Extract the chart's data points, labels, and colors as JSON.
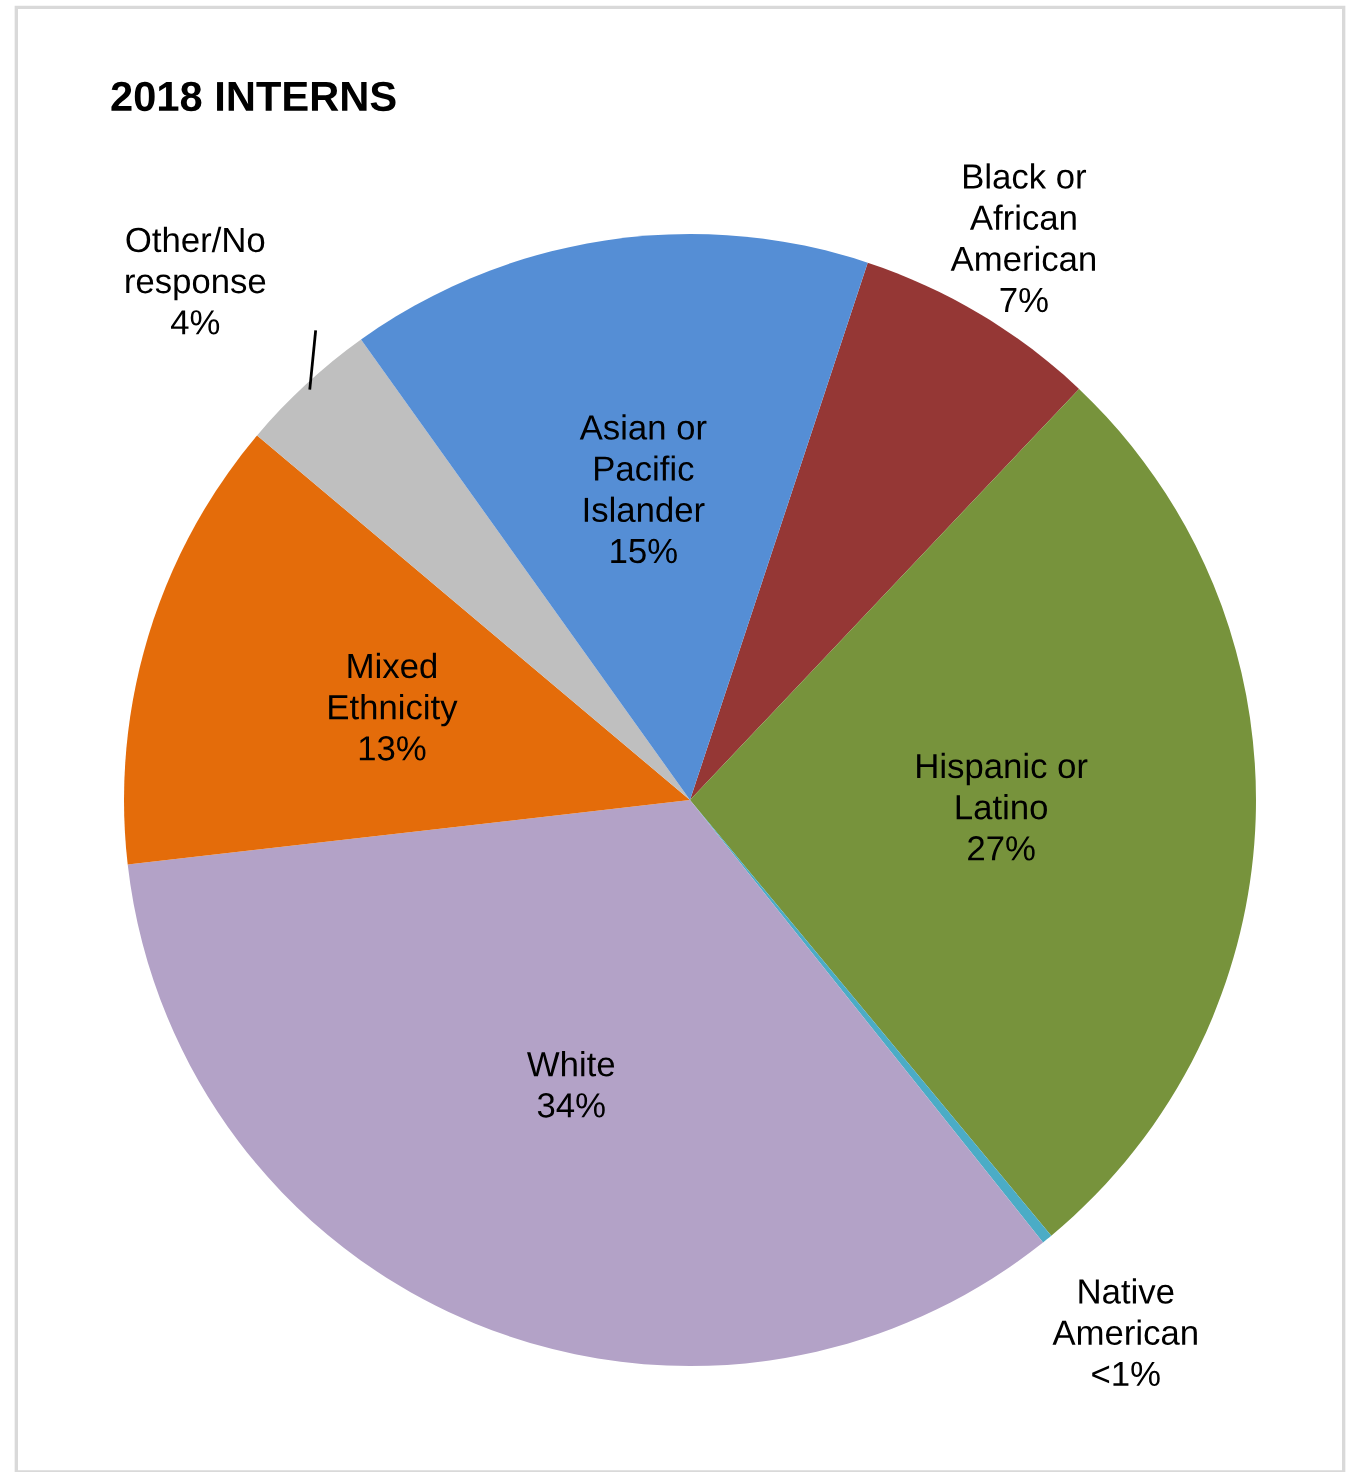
{
  "chart_data": {
    "type": "pie",
    "title": "2018 INTERNS",
    "categories": [
      "Black or\nAfrican\nAmerican",
      "Hispanic or\nLatino",
      "Native\nAmerican",
      "White",
      "Mixed\nEthnicity",
      "Other/No\nresponse",
      "Asian or\nPacific\nIslander"
    ],
    "values": [
      7,
      27,
      0.3,
      34,
      13,
      4,
      15
    ],
    "value_labels": [
      "7%",
      "27%",
      "<1%",
      "34%",
      "13%",
      "4%",
      "15%"
    ],
    "colors": [
      "#953735",
      "#77933c",
      "#4bacc6",
      "#b3a2c7",
      "#e46c0a",
      "#bfbfbf",
      "#558ed5"
    ],
    "legend": false
  }
}
